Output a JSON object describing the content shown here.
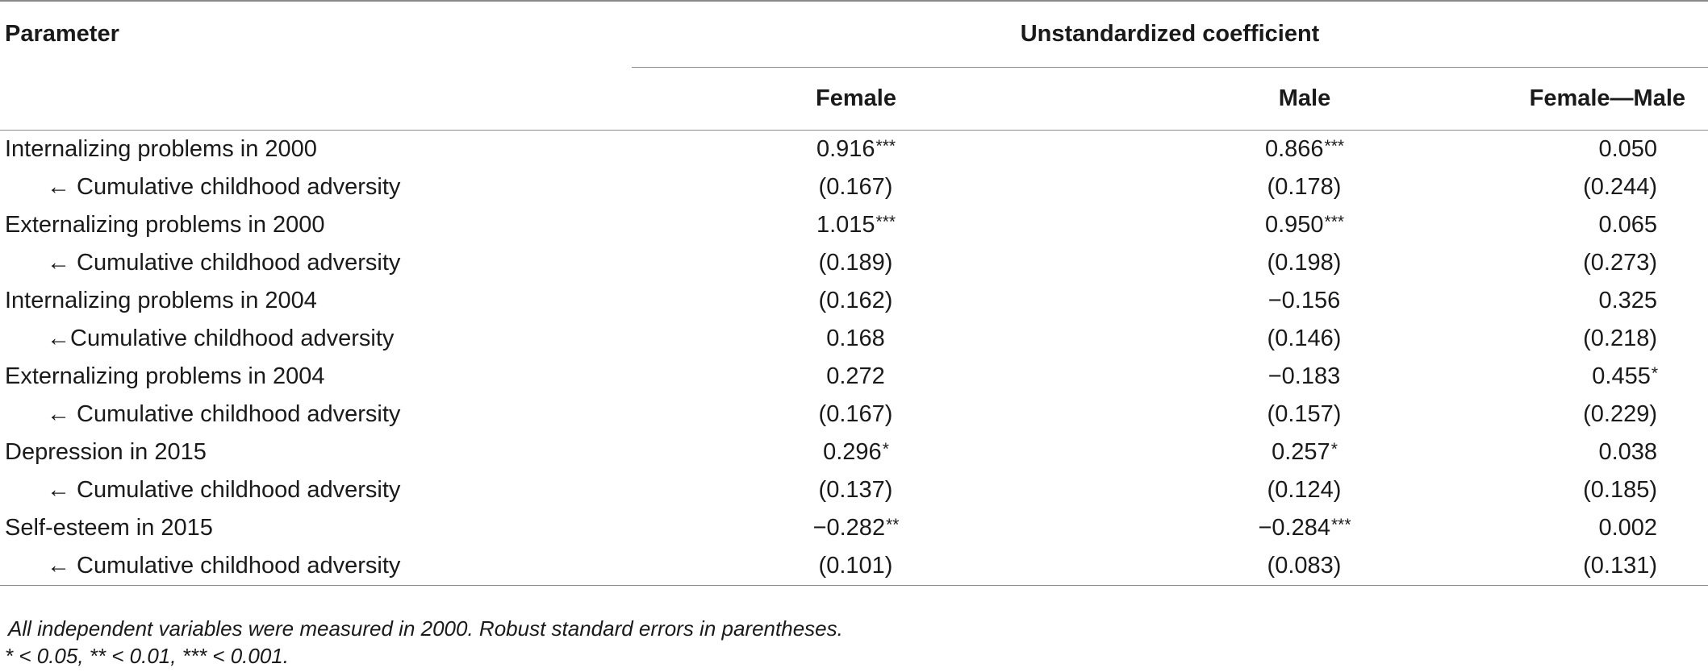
{
  "headers": {
    "parameter": "Parameter",
    "group": "Unstandardized coefficient",
    "female": "Female",
    "male": "Male",
    "diff": "Female—Male"
  },
  "rows": [
    {
      "label": "Internalizing problems in 2000",
      "sub": false,
      "female": "0.916",
      "female_sig": "***",
      "male": "0.866",
      "male_sig": "***",
      "diff": "0.050",
      "diff_sig": ""
    },
    {
      "label": "← Cumulative childhood adversity",
      "sub": true,
      "female": "(0.167)",
      "female_sig": "",
      "male": "(0.178)",
      "male_sig": "",
      "diff": "(0.244)",
      "diff_sig": ""
    },
    {
      "label": "Externalizing problems in 2000",
      "sub": false,
      "female": "1.015",
      "female_sig": "***",
      "male": "0.950",
      "male_sig": "***",
      "diff": "0.065",
      "diff_sig": ""
    },
    {
      "label": "← Cumulative childhood adversity",
      "sub": true,
      "female": "(0.189)",
      "female_sig": "",
      "male": "(0.198)",
      "male_sig": "",
      "diff": "(0.273)",
      "diff_sig": ""
    },
    {
      "label": "Internalizing problems in 2004",
      "sub": false,
      "female": "(0.162)",
      "female_sig": "",
      "male": "−0.156",
      "male_sig": "",
      "diff": "0.325",
      "diff_sig": ""
    },
    {
      "label": "←Cumulative childhood adversity",
      "sub": true,
      "female": "0.168",
      "female_sig": "",
      "male": "(0.146)",
      "male_sig": "",
      "diff": "(0.218)",
      "diff_sig": ""
    },
    {
      "label": "Externalizing problems in 2004",
      "sub": false,
      "female": "0.272",
      "female_sig": "",
      "male": "−0.183",
      "male_sig": "",
      "diff": "0.455",
      "diff_sig": "*"
    },
    {
      "label": "← Cumulative childhood adversity",
      "sub": true,
      "female": "(0.167)",
      "female_sig": "",
      "male": "(0.157)",
      "male_sig": "",
      "diff": "(0.229)",
      "diff_sig": ""
    },
    {
      "label": "Depression in 2015",
      "sub": false,
      "female": "0.296",
      "female_sig": "*",
      "male": "0.257",
      "male_sig": "*",
      "diff": "0.038",
      "diff_sig": ""
    },
    {
      "label": "← Cumulative childhood adversity",
      "sub": true,
      "female": "(0.137)",
      "female_sig": "",
      "male": "(0.124)",
      "male_sig": "",
      "diff": "(0.185)",
      "diff_sig": ""
    },
    {
      "label": "Self-esteem in 2015",
      "sub": false,
      "female": "−0.282",
      "female_sig": "**",
      "male": "−0.284",
      "male_sig": "***",
      "diff": "0.002",
      "diff_sig": ""
    },
    {
      "label": "← Cumulative childhood adversity",
      "sub": true,
      "female": "(0.101)",
      "female_sig": "",
      "male": "(0.083)",
      "male_sig": "",
      "diff": "(0.131)",
      "diff_sig": ""
    }
  ],
  "footnotes": {
    "note": " All independent variables were measured in 2000. Robust standard errors in parentheses.",
    "significance": "* < 0.05, ** < 0.01, *** < 0.001."
  }
}
